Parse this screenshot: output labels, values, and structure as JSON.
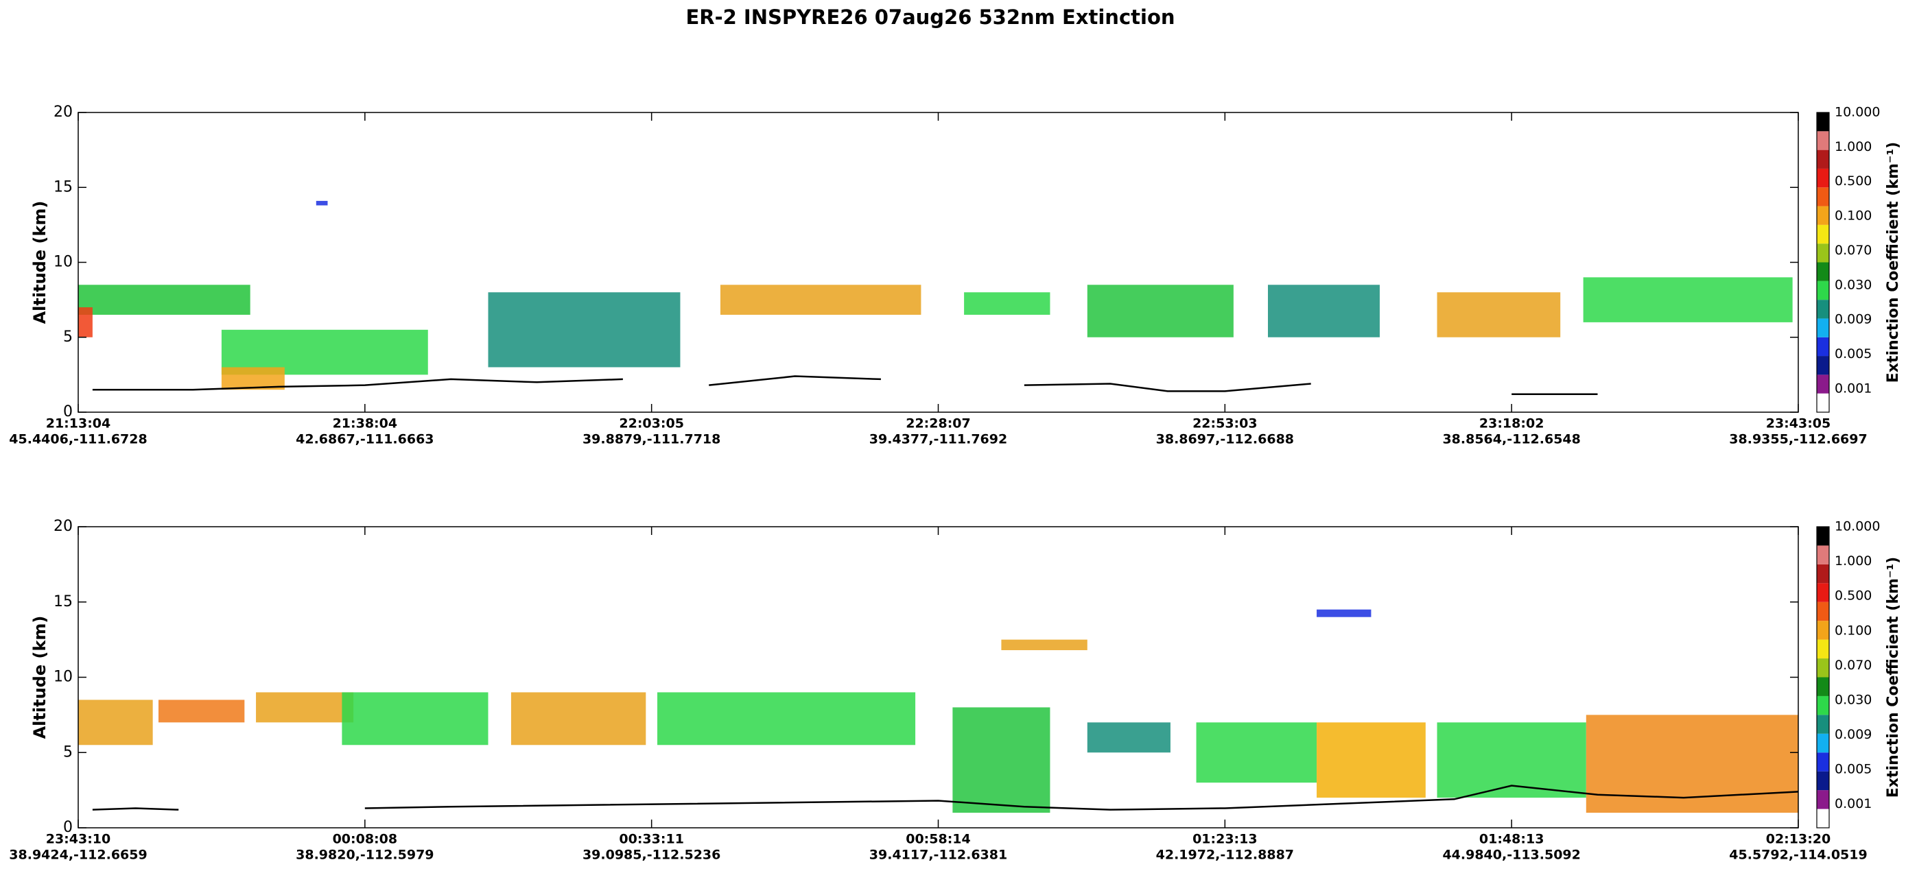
{
  "title": "ER-2  INSPYRE26  07aug26  532nm Extinction",
  "chart_data": [
    {
      "type": "curtain",
      "ylabel": "Altitude (km)",
      "ylim": [
        0,
        20
      ],
      "yticks": [
        0,
        5,
        10,
        15,
        20
      ],
      "xlim": [
        0,
        6
      ],
      "xticks": [
        {
          "value": 0,
          "label": "21:13:04"
        },
        {
          "value": 1,
          "label": "21:38:04"
        },
        {
          "value": 2,
          "label": "22:03:05"
        },
        {
          "value": 3,
          "label": "22:28:07"
        },
        {
          "value": 4,
          "label": "22:53:03"
        },
        {
          "value": 5,
          "label": "23:18:02"
        },
        {
          "value": 6,
          "label": "23:43:05"
        }
      ],
      "xtick_coords": [
        "45.4406,-111.6728",
        "42.6867,-111.6663",
        "39.8879,-111.7718",
        "39.4377,-111.7692",
        "38.8697,-112.6688",
        "38.8564,-112.6548",
        "38.9355,-112.6697"
      ],
      "layers": [
        {
          "x": [
            0,
            0.6
          ],
          "values": [
            6.5,
            8.5
          ],
          "color": "#22c33a"
        },
        {
          "x": [
            0,
            0.05
          ],
          "values": [
            5,
            7
          ],
          "color": "#f03c14"
        },
        {
          "x": [
            0.5,
            1.22
          ],
          "values": [
            2.5,
            5.5
          ],
          "color": "#2ed84a"
        },
        {
          "x": [
            0.5,
            0.72
          ],
          "values": [
            1.5,
            3
          ],
          "color": "#f3a41a"
        },
        {
          "x": [
            0.83,
            0.87
          ],
          "values": [
            13.8,
            14.1
          ],
          "color": "#1a2fe0"
        },
        {
          "x": [
            1.43,
            2.1
          ],
          "values": [
            3,
            8
          ],
          "color": "#178f7d"
        },
        {
          "x": [
            2.24,
            2.94
          ],
          "values": [
            6.5,
            8.5
          ],
          "color": "#e9a21d"
        },
        {
          "x": [
            3.09,
            3.39
          ],
          "values": [
            6.5,
            8
          ],
          "color": "#2ed84a"
        },
        {
          "x": [
            3.52,
            4.03
          ],
          "values": [
            5,
            8.5
          ],
          "color": "#25c440"
        },
        {
          "x": [
            4.15,
            4.54
          ],
          "values": [
            5,
            8.5
          ],
          "color": "#178f7d"
        },
        {
          "x": [
            4.74,
            5.17
          ],
          "values": [
            5,
            8
          ],
          "color": "#e9a21d"
        },
        {
          "x": [
            5.25,
            5.98
          ],
          "values": [
            6,
            9
          ],
          "color": "#2ed84a"
        }
      ],
      "surface": {
        "x": [
          0.05,
          0.4,
          0.7,
          1.0,
          1.3,
          1.6,
          1.9,
          2.0,
          2.2,
          2.5,
          2.8,
          3.0,
          3.3,
          3.6,
          3.8,
          4.0,
          4.3,
          4.5,
          5.0,
          5.3
        ],
        "values": [
          1.5,
          1.5,
          1.7,
          1.8,
          2.2,
          2.0,
          2.2,
          null,
          1.8,
          2.4,
          2.2,
          null,
          1.8,
          1.9,
          1.4,
          1.4,
          1.9,
          null,
          1.2,
          1.2
        ]
      }
    },
    {
      "type": "curtain",
      "ylabel": "Altitude (km)",
      "ylim": [
        0,
        20
      ],
      "yticks": [
        0,
        5,
        10,
        15,
        20
      ],
      "xlim": [
        0,
        6
      ],
      "xticks": [
        {
          "value": 0,
          "label": "23:43:10"
        },
        {
          "value": 1,
          "label": "00:08:08"
        },
        {
          "value": 2,
          "label": "00:33:11"
        },
        {
          "value": 3,
          "label": "00:58:14"
        },
        {
          "value": 4,
          "label": "01:23:13"
        },
        {
          "value": 5,
          "label": "01:48:13"
        },
        {
          "value": 6,
          "label": "02:13:20"
        }
      ],
      "xtick_coords": [
        "38.9424,-112.6659",
        "38.9820,-112.5979",
        "39.0985,-112.5236",
        "39.4117,-112.6381",
        "42.1972,-112.8887",
        "44.9840,-113.5092",
        "45.5792,-114.0519"
      ],
      "layers": [
        {
          "x": [
            0,
            0.26
          ],
          "values": [
            5.5,
            8.5
          ],
          "color": "#e9a21d"
        },
        {
          "x": [
            0.28,
            0.58
          ],
          "values": [
            7,
            8.5
          ],
          "color": "#f07a1a"
        },
        {
          "x": [
            0.62,
            0.96
          ],
          "values": [
            7,
            9
          ],
          "color": "#e9a21d"
        },
        {
          "x": [
            0.92,
            1.43
          ],
          "values": [
            5.5,
            9
          ],
          "color": "#2ed84a"
        },
        {
          "x": [
            1.51,
            1.98
          ],
          "values": [
            5.5,
            9
          ],
          "color": "#e9a21d"
        },
        {
          "x": [
            2.02,
            2.92
          ],
          "values": [
            5.5,
            9
          ],
          "color": "#2ed84a"
        },
        {
          "x": [
            3.05,
            3.39
          ],
          "values": [
            1,
            8
          ],
          "color": "#25c440"
        },
        {
          "x": [
            3.22,
            3.52
          ],
          "values": [
            11.8,
            12.5
          ],
          "color": "#e9a21d"
        },
        {
          "x": [
            3.52,
            3.81
          ],
          "values": [
            5,
            7
          ],
          "color": "#178f7d"
        },
        {
          "x": [
            3.9,
            4.32
          ],
          "values": [
            3,
            7
          ],
          "color": "#2ed84a"
        },
        {
          "x": [
            4.32,
            4.51
          ],
          "values": [
            14,
            14.5
          ],
          "color": "#1a2fe0"
        },
        {
          "x": [
            4.32,
            4.7
          ],
          "values": [
            2,
            7
          ],
          "color": "#f3b00a"
        },
        {
          "x": [
            4.74,
            5.26
          ],
          "values": [
            2,
            7
          ],
          "color": "#2ed84a"
        },
        {
          "x": [
            5.26,
            6
          ],
          "values": [
            1,
            7.5
          ],
          "color": "#ee8a1a"
        }
      ],
      "surface": {
        "x": [
          0.05,
          0.2,
          0.35,
          null,
          1.0,
          1.3,
          3.0,
          3.3,
          3.6,
          4.0,
          4.4,
          4.8,
          5.0,
          5.3,
          5.6,
          6.0
        ],
        "values": [
          1.2,
          1.3,
          1.2,
          null,
          1.3,
          1.4,
          1.8,
          1.4,
          1.2,
          1.3,
          1.6,
          1.9,
          2.8,
          2.2,
          2.0,
          2.4
        ]
      }
    }
  ],
  "colorbar": {
    "label": "Extinction Coefficient (km⁻¹)",
    "colors": [
      "#ffffff",
      "#8b1a8b",
      "#0a1a8c",
      "#1a2fe0",
      "#12b0f0",
      "#178f7d",
      "#2ed84a",
      "#138a18",
      "#9ac41a",
      "#f5e614",
      "#f3a41a",
      "#f05a14",
      "#e81a14",
      "#b01a1a",
      "#e07a7a",
      "#000000"
    ],
    "labels": [
      "0.001",
      "0.005",
      "0.009",
      "0.030",
      "0.070",
      "0.100",
      "0.500",
      "1.000",
      "10.000"
    ]
  }
}
